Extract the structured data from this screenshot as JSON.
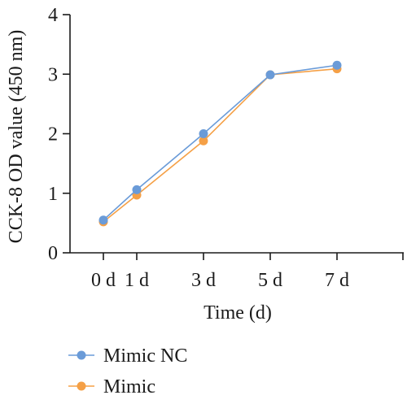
{
  "chart_data": {
    "type": "line",
    "title": "",
    "xlabel": "Time (d)",
    "ylabel": "CCK-8 OD value (450 nm)",
    "x": [
      0,
      1,
      3,
      5,
      7
    ],
    "x_tick_labels": [
      "0 d",
      "1 d",
      "3 d",
      "5 d",
      "7 d"
    ],
    "xlim": [
      -1,
      9
    ],
    "ylim": [
      0,
      4
    ],
    "y_ticks": [
      0,
      1,
      2,
      3,
      4
    ],
    "grid": false,
    "legend_position": "bottom-left",
    "series": [
      {
        "name": "Mimic NC",
        "color": "#6a9bd8",
        "values": [
          0.55,
          1.06,
          2.0,
          2.99,
          3.15
        ]
      },
      {
        "name": "Mimic",
        "color": "#f5a046",
        "values": [
          0.52,
          0.97,
          1.88,
          2.99,
          3.09
        ]
      }
    ]
  }
}
